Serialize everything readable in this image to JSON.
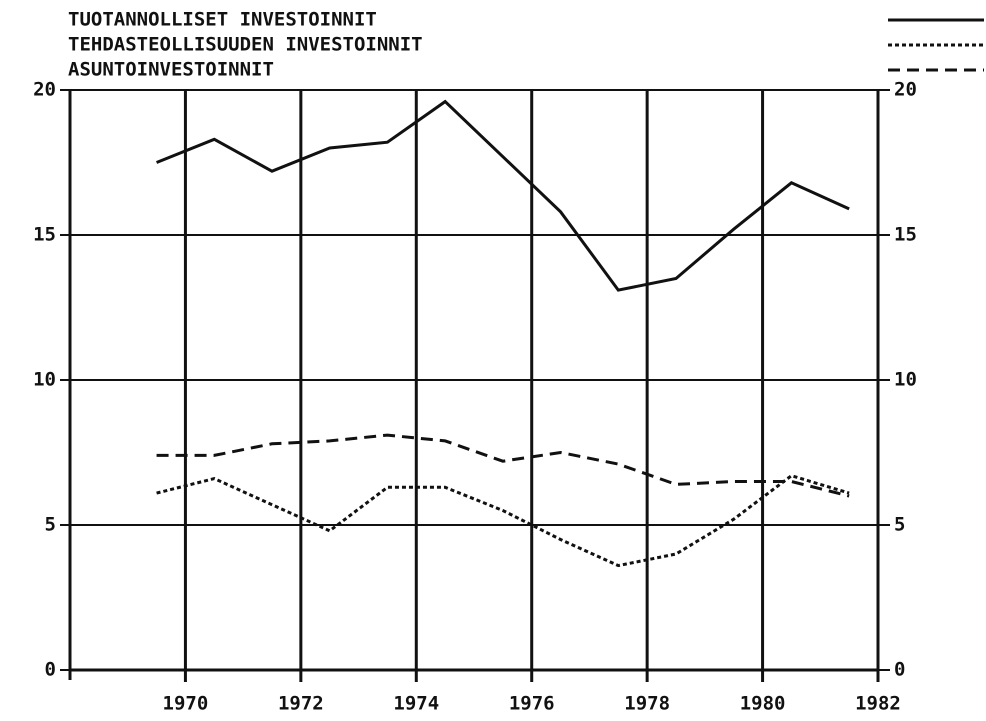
{
  "chart_data": {
    "type": "line",
    "x": [
      1969.5,
      1970.5,
      1971.5,
      1972.5,
      1973.5,
      1974.5,
      1975.5,
      1976.5,
      1977.5,
      1978.5,
      1979.5,
      1980.5,
      1981.5
    ],
    "series": [
      {
        "name": "TUOTANNOLLISET INVESTOINNIT",
        "color": "#111111",
        "dash": "solid",
        "values": [
          17.5,
          18.3,
          17.2,
          18.0,
          18.2,
          19.6,
          17.7,
          15.8,
          13.1,
          13.5,
          15.2,
          16.8,
          15.9
        ]
      },
      {
        "name": "TEHDASTEOLLISUUDEN INVESTOINNIT",
        "color": "#111111",
        "dash": "dotted",
        "values": [
          6.1,
          6.6,
          5.7,
          4.8,
          6.3,
          6.3,
          5.5,
          4.5,
          3.6,
          4.0,
          5.2,
          6.7,
          6.1
        ]
      },
      {
        "name": "ASUNTOINVESTOINNIT",
        "color": "#111111",
        "dash": "dashed",
        "values": [
          7.4,
          7.4,
          7.8,
          7.9,
          8.1,
          7.9,
          7.2,
          7.5,
          7.1,
          6.4,
          6.5,
          6.5,
          6.0
        ]
      }
    ],
    "xlim": [
      1968,
      1982
    ],
    "xticks": [
      1970,
      1972,
      1974,
      1976,
      1978,
      1980,
      1982
    ],
    "ylim": [
      0,
      20
    ],
    "yticks": [
      0,
      5,
      10,
      15,
      20
    ],
    "grid": true
  }
}
